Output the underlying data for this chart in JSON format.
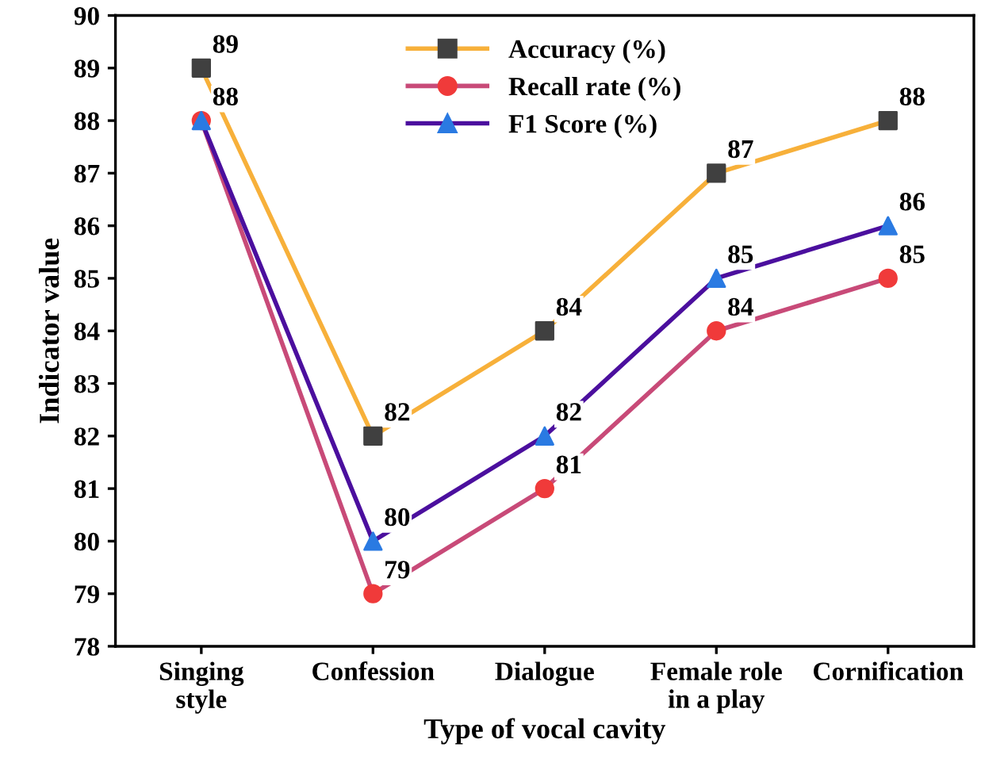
{
  "chart_data": {
    "type": "line",
    "xlabel": "Type of vocal cavity",
    "ylabel": "Indicator value",
    "categories": [
      "Singing\nstyle",
      "Confession",
      "Dialogue",
      "Female role\nin a play",
      "Cornification"
    ],
    "series": [
      {
        "name": "Accuracy (%)",
        "color": "#f7b03a",
        "colors": [
          "#404040",
          "#404040",
          "#404040",
          "#404040",
          "#404040"
        ],
        "marker": "square",
        "values": [
          89,
          82,
          84,
          87,
          88
        ]
      },
      {
        "name": "Recall rate (%)",
        "color": "#c84a78",
        "colors": [
          "#f03a3a",
          "#f03a3a",
          "#f03a3a",
          "#f03a3a",
          "#f03a3a"
        ],
        "marker": "circle",
        "values": [
          88,
          79,
          81,
          84,
          85
        ]
      },
      {
        "name": "F1 Score (%)",
        "color": "#4b0f9e",
        "colors": [
          "#2a7ae2",
          "#2a7ae2",
          "#2a7ae2",
          "#2a7ae2",
          "#2a7ae2"
        ],
        "marker": "triangle",
        "values": [
          88,
          80,
          82,
          85,
          86
        ],
        "value_labels": [
          null,
          "80",
          "82",
          "85",
          "86"
        ]
      }
    ],
    "ylim": [
      78,
      90
    ],
    "yticks": [
      78,
      79,
      80,
      81,
      82,
      83,
      84,
      85,
      86,
      87,
      88,
      89,
      90
    ],
    "data_labels": true,
    "legend": "top",
    "grid": false,
    "line_style": "solid"
  }
}
